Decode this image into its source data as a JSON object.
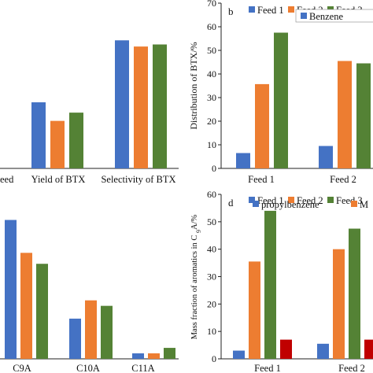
{
  "colors": {
    "feed1": "#4472C4",
    "feed2": "#ED7D31",
    "feed3": "#548235",
    "extra": "#C00000"
  },
  "chart_data": [
    {
      "id": "a",
      "type": "bar",
      "panel_letter": "",
      "categories": [
        "eed",
        "Yield of BTX",
        "Selectivity of BTX"
      ],
      "series": [
        {
          "name": "Feed 1",
          "color": "#4472C4",
          "values": [
            0,
            32,
            62
          ]
        },
        {
          "name": "Feed 2",
          "color": "#ED7D31",
          "values": [
            0,
            23,
            59
          ]
        },
        {
          "name": "Feed 3",
          "color": "#548235",
          "values": [
            0,
            27,
            60
          ]
        }
      ],
      "ylim": [
        0,
        80
      ],
      "yticks": [],
      "ylabel": "",
      "legend": "top-right"
    },
    {
      "id": "b",
      "type": "bar",
      "panel_letter": "b",
      "categories": [
        "Feed 1",
        "Feed 2"
      ],
      "series": [
        {
          "name": "Benzene",
          "color": "#4472C4",
          "values": [
            6.5,
            9.5
          ]
        },
        {
          "name": "",
          "color": "#ED7D31",
          "values": [
            35.7,
            45.5
          ]
        },
        {
          "name": "",
          "color": "#548235",
          "values": [
            57.5,
            44.5
          ]
        }
      ],
      "ylim": [
        0,
        70
      ],
      "yticks": [
        0,
        10,
        20,
        30,
        40,
        50,
        60,
        70
      ],
      "ylabel": "Distribution of BTX/%",
      "legend": "top-right"
    },
    {
      "id": "c",
      "type": "bar",
      "panel_letter": "",
      "categories": [
        "C9A",
        "C10A",
        "C11A"
      ],
      "series": [
        {
          "name": "Feed 1",
          "color": "#4472C4",
          "values": [
            76,
            22,
            3
          ]
        },
        {
          "name": "Feed 2",
          "color": "#ED7D31",
          "values": [
            58,
            32,
            3
          ]
        },
        {
          "name": "Feed 3",
          "color": "#548235",
          "values": [
            52,
            29,
            6
          ]
        }
      ],
      "ylim": [
        0,
        90
      ],
      "yticks": [],
      "ylabel": "",
      "legend": "top-right"
    },
    {
      "id": "d",
      "type": "bar",
      "panel_letter": "d",
      "categories": [
        "Feed 1",
        "Feed 2"
      ],
      "series": [
        {
          "name": "propylbenzene",
          "color": "#4472C4",
          "values": [
            3,
            5.5
          ]
        },
        {
          "name": "",
          "color": "#ED7D31",
          "values": [
            35.5,
            40
          ]
        },
        {
          "name": "",
          "color": "#548235",
          "values": [
            54,
            47.5
          ]
        },
        {
          "name": "",
          "color": "#C00000",
          "values": [
            7,
            7
          ]
        }
      ],
      "ylim": [
        0,
        60
      ],
      "yticks": [
        0,
        10,
        20,
        30,
        40,
        50,
        60
      ],
      "ylabel": "Mass fraction of aromatics in C9A/%",
      "legend": "top-right",
      "legend_extra": "M"
    }
  ]
}
